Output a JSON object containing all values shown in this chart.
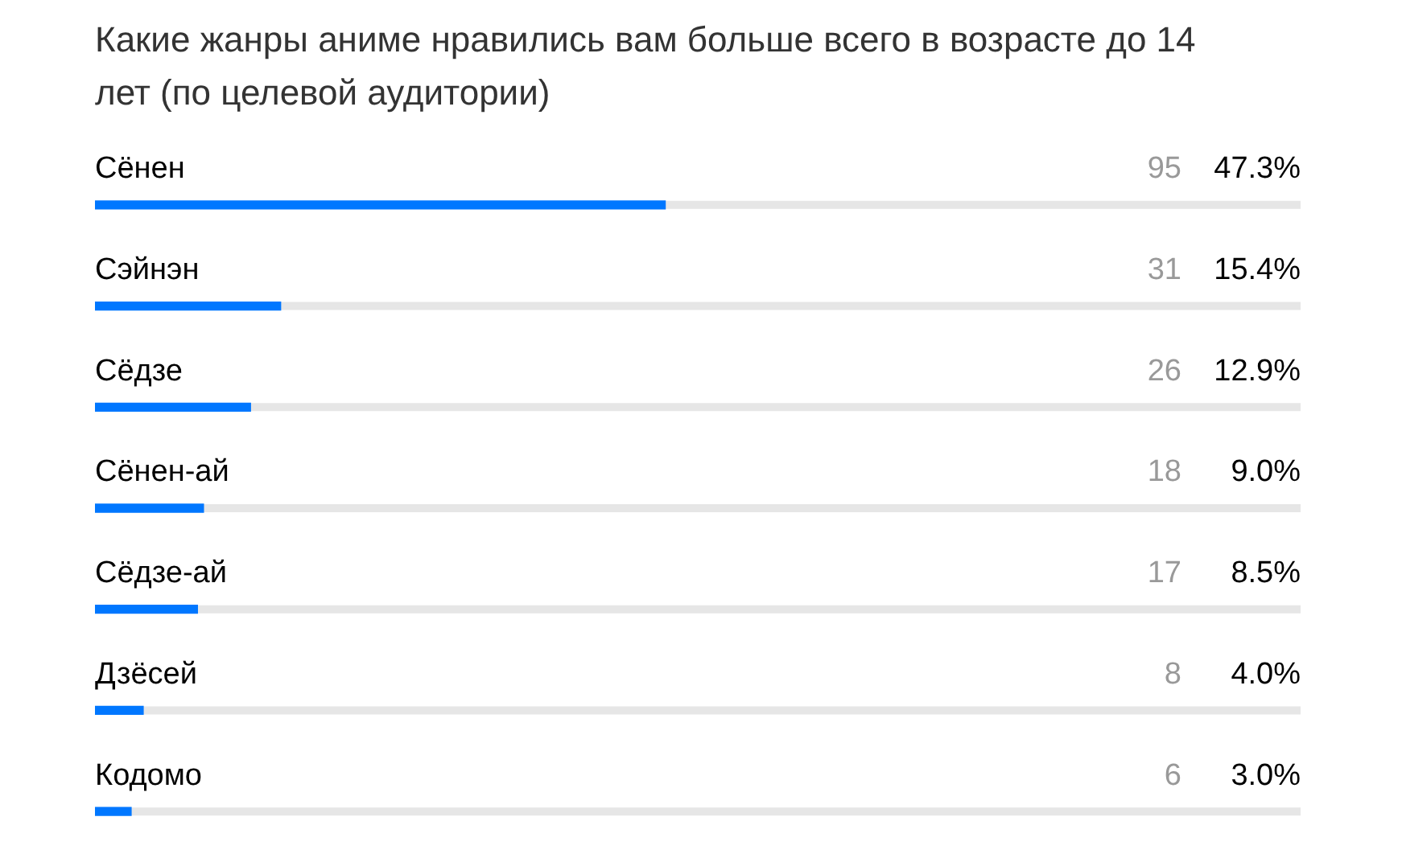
{
  "chart_data": {
    "type": "bar",
    "orientation": "horizontal",
    "title": "Какие жанры аниме нравились вам больше всего в возрасте до 14 лет (по целевой аудитории)",
    "categories": [
      "Сёнен",
      "Сэйнэн",
      "Сёдзе",
      "Сёнен-ай",
      "Сёдзе-ай",
      "Дзёсей",
      "Кодомо"
    ],
    "values": [
      47.3,
      15.4,
      12.9,
      9.0,
      8.5,
      4.0,
      3.0
    ],
    "value_labels": [
      "47.3%",
      "15.4%",
      "12.9%",
      "9.0%",
      "8.5%",
      "4.0%",
      "3.0%"
    ],
    "annotations": [
      "95",
      "31",
      "26",
      "18",
      "17",
      "8",
      "6"
    ],
    "color": "#0077ff",
    "xlim": [
      0,
      100
    ]
  }
}
